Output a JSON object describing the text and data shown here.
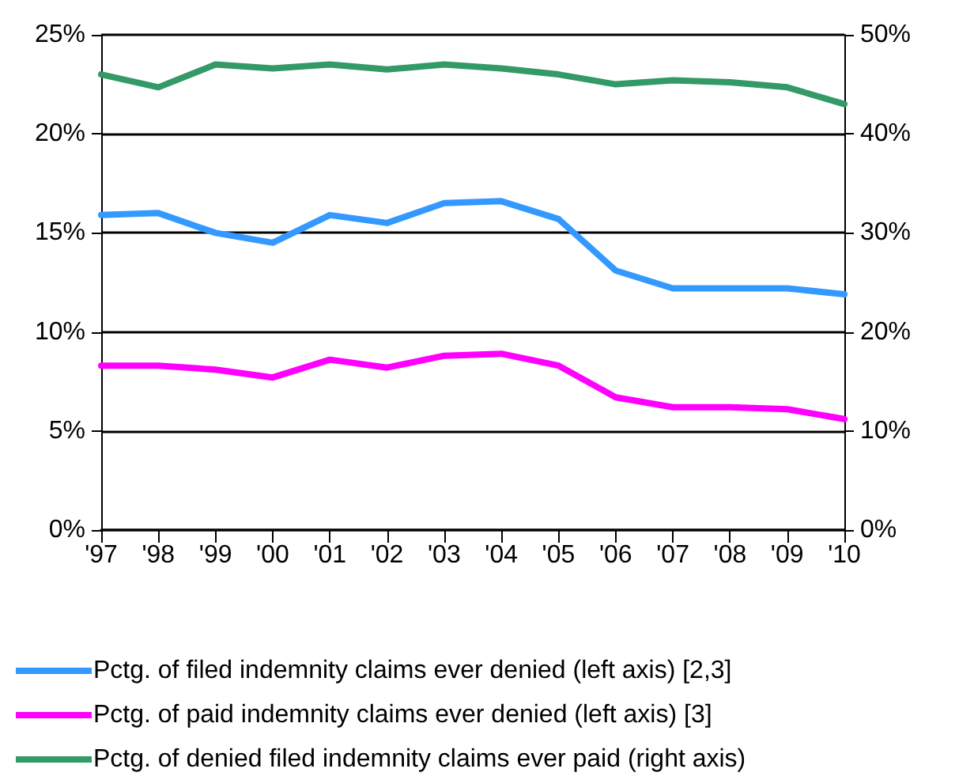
{
  "chart_data": {
    "type": "line",
    "categories": [
      "'97",
      "'98",
      "'99",
      "'00",
      "'01",
      "'02",
      "'03",
      "'04",
      "'05",
      "'06",
      "'07",
      "'08",
      "'09",
      "'10"
    ],
    "series": [
      {
        "name": "Pctg. of filed indemnity claims ever denied (left axis) [2,3]",
        "color": "#3399ff",
        "values": [
          15.9,
          16.0,
          15.0,
          14.5,
          15.9,
          15.5,
          16.5,
          16.6,
          15.7,
          13.1,
          12.2,
          12.2,
          12.2,
          11.9
        ]
      },
      {
        "name": "Pctg. of paid indemnity claims ever denied (left axis) [3]",
        "color": "#ff00ff",
        "values": [
          8.3,
          8.3,
          8.1,
          7.7,
          8.6,
          8.2,
          8.8,
          8.9,
          8.3,
          6.7,
          6.2,
          6.2,
          6.1,
          5.6
        ]
      },
      {
        "name": "Pctg. of denied filed indemnity claims ever paid (right axis)",
        "color": "#339966",
        "axis": "y2",
        "values": [
          46.0,
          44.7,
          47.0,
          46.6,
          47.0,
          46.5,
          47.0,
          46.6,
          46.0,
          45.0,
          45.4,
          45.2,
          44.7,
          43.0
        ]
      }
    ],
    "ylim": [
      0,
      25
    ],
    "yticks": [
      {
        "value": 0,
        "label": "0%"
      },
      {
        "value": 5,
        "label": "5%"
      },
      {
        "value": 10,
        "label": "10%"
      },
      {
        "value": 15,
        "label": "15%"
      },
      {
        "value": 20,
        "label": "20%"
      },
      {
        "value": 25,
        "label": "25%"
      }
    ],
    "y2lim": [
      0,
      50
    ],
    "y2ticks": [
      {
        "value": 0,
        "label": "0%"
      },
      {
        "value": 10,
        "label": "10%"
      },
      {
        "value": 20,
        "label": "20%"
      },
      {
        "value": 30,
        "label": "30%"
      },
      {
        "value": 40,
        "label": "40%"
      },
      {
        "value": 50,
        "label": "50%"
      }
    ],
    "grid": "y",
    "legend": "bottom",
    "marker": "none",
    "line_style": "solid"
  }
}
